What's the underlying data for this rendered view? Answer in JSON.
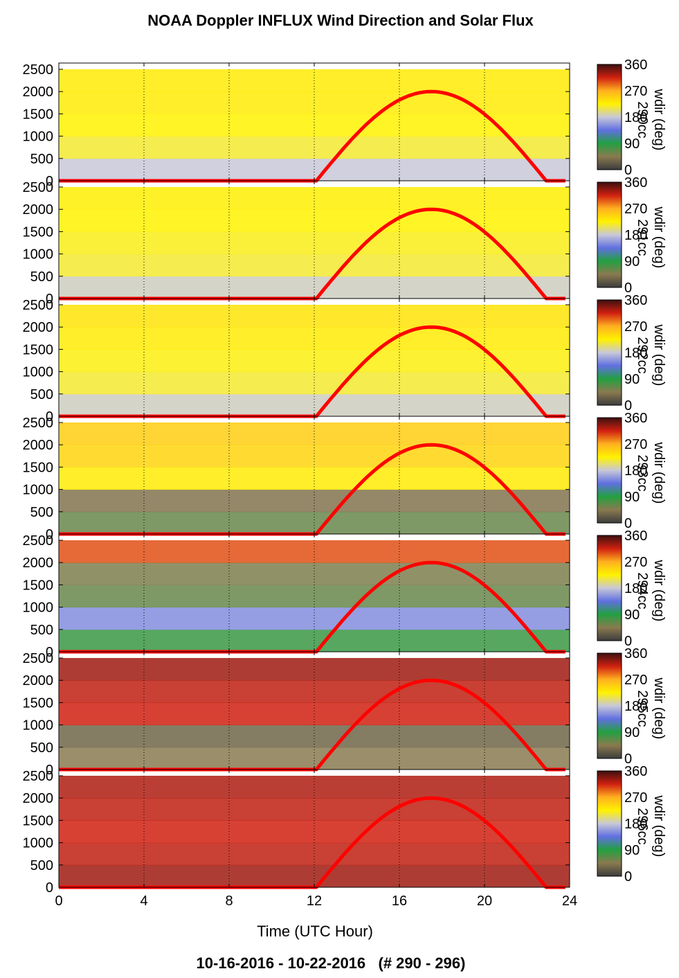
{
  "title": "NOAA Doppler INFLUX Wind Direction and Solar Flux",
  "footer": "10-16-2016 - 10-22-2016   (# 290 - 296)",
  "chart_data": {
    "type": "heatmap",
    "xlabel": "Time (UTC Hour)",
    "xlim": [
      0,
      24
    ],
    "x_ticks": [
      0,
      4,
      8,
      12,
      16,
      20,
      24
    ],
    "ylim": [
      0,
      2500
    ],
    "y_ticks": [
      0,
      500,
      1000,
      1500,
      2000,
      2500
    ],
    "colorbar": {
      "label": "wdir (deg)",
      "range": [
        0,
        360
      ],
      "ticks": [
        0,
        90,
        180,
        270,
        360
      ],
      "colors": [
        "#3c3c3c",
        "#8a7a50",
        "#22a040",
        "#6070e0",
        "#c8c8d8",
        "#fff200",
        "#ffb020",
        "#d02010",
        "#3c1010"
      ]
    },
    "solar_flux": {
      "color": "#ff0000",
      "sunrise_hour": 12.1,
      "sunset_hour": 22.9,
      "peak_hour": 17.5,
      "peak_value": 2000
    },
    "panels": [
      {
        "day": "290",
        "name_label": "290cc"
      },
      {
        "day": "291",
        "name_label": "291cc"
      },
      {
        "day": "292",
        "name_label": "292cc"
      },
      {
        "day": "293",
        "name_label": "293cc"
      },
      {
        "day": "294",
        "name_label": "294cc"
      },
      {
        "day": "295",
        "name_label": "295cc"
      },
      {
        "day": "296",
        "name_label": "296cc"
      }
    ]
  }
}
